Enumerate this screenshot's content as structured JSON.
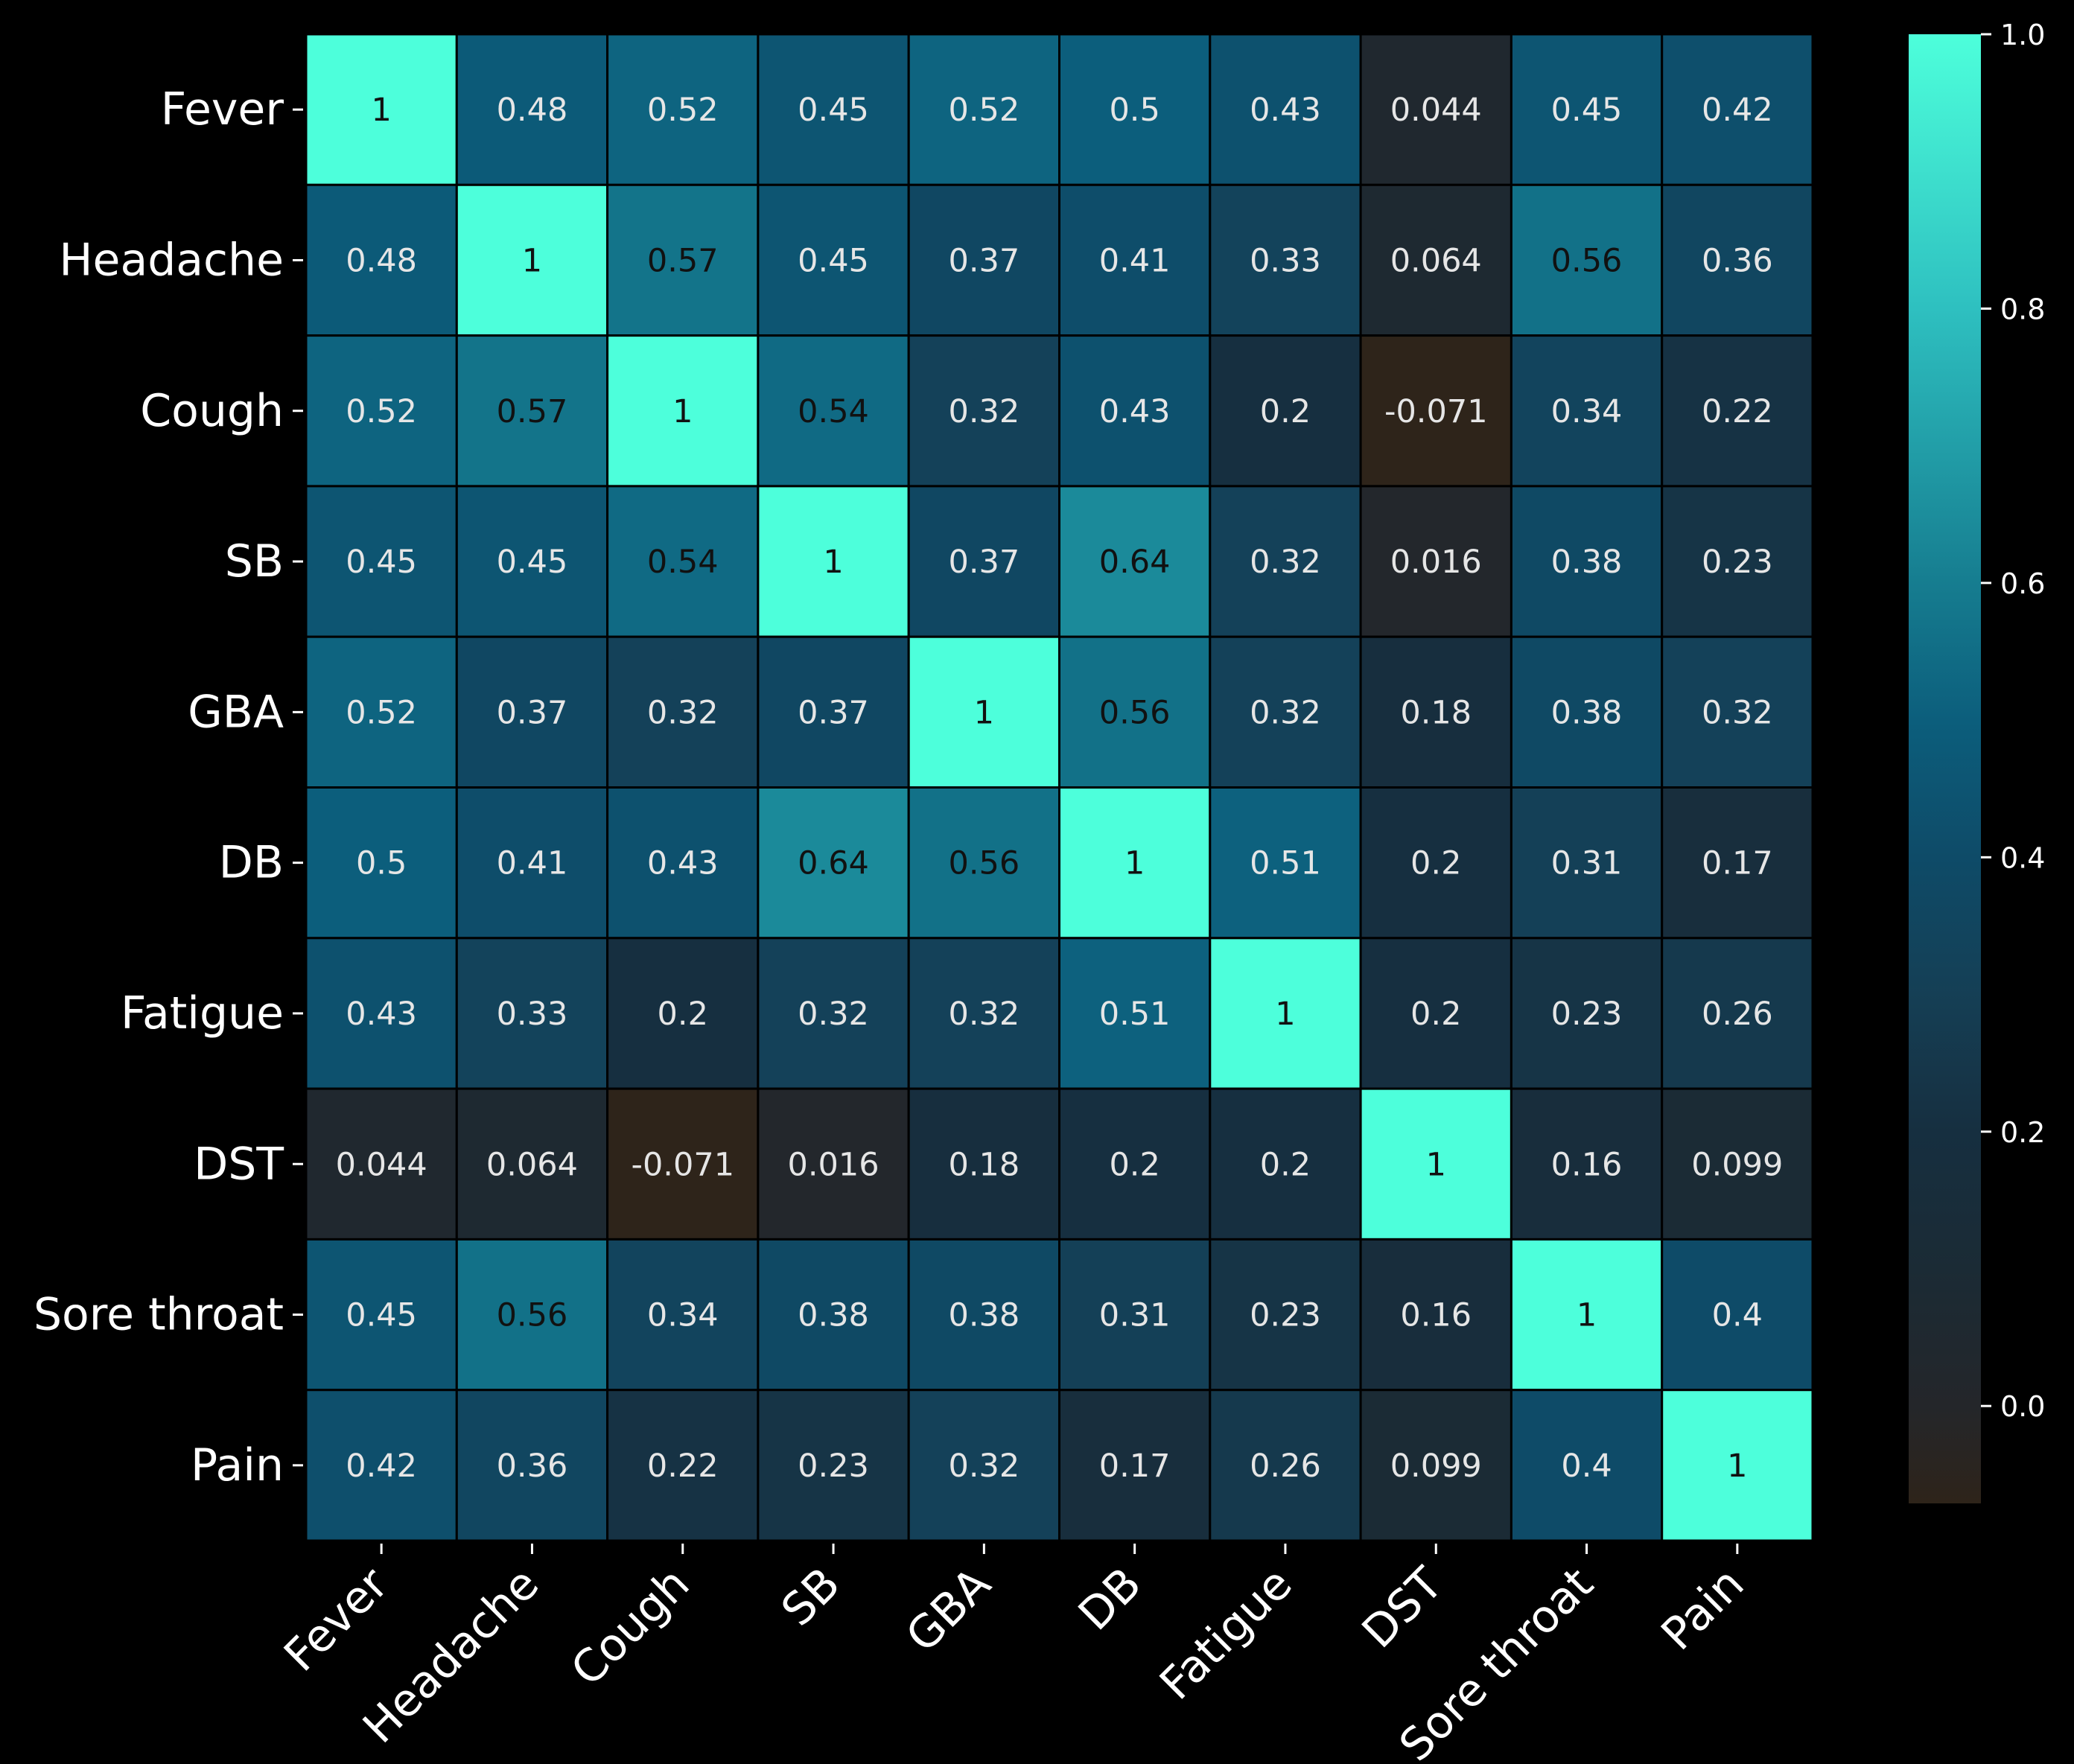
{
  "chart_data": {
    "type": "heatmap",
    "title": "",
    "xlabel": "",
    "ylabel": "",
    "row_labels": [
      "Fever",
      "Headache",
      "Cough",
      "SB",
      "GBA",
      "DB",
      "Fatigue",
      "DST",
      "Sore throat",
      "Pain"
    ],
    "col_labels": [
      "Fever",
      "Headache",
      "Cough",
      "SB",
      "GBA",
      "DB",
      "Fatigue",
      "DST",
      "Sore throat",
      "Pain"
    ],
    "values": [
      [
        1,
        0.48,
        0.52,
        0.45,
        0.52,
        0.5,
        0.43,
        0.044,
        0.45,
        0.42
      ],
      [
        0.48,
        1,
        0.57,
        0.45,
        0.37,
        0.41,
        0.33,
        0.064,
        0.56,
        0.36
      ],
      [
        0.52,
        0.57,
        1,
        0.54,
        0.32,
        0.43,
        0.2,
        -0.071,
        0.34,
        0.22
      ],
      [
        0.45,
        0.45,
        0.54,
        1,
        0.37,
        0.64,
        0.32,
        0.016,
        0.38,
        0.23
      ],
      [
        0.52,
        0.37,
        0.32,
        0.37,
        1,
        0.56,
        0.32,
        0.18,
        0.38,
        0.32
      ],
      [
        0.5,
        0.41,
        0.43,
        0.64,
        0.56,
        1,
        0.51,
        0.2,
        0.31,
        0.17
      ],
      [
        0.43,
        0.33,
        0.2,
        0.32,
        0.32,
        0.51,
        1,
        0.2,
        0.23,
        0.26
      ],
      [
        0.044,
        0.064,
        -0.071,
        0.016,
        0.18,
        0.2,
        0.2,
        1,
        0.16,
        0.099
      ],
      [
        0.45,
        0.56,
        0.34,
        0.38,
        0.38,
        0.31,
        0.23,
        0.16,
        1,
        0.4
      ],
      [
        0.42,
        0.36,
        0.22,
        0.23,
        0.32,
        0.17,
        0.26,
        0.099,
        0.4,
        1
      ]
    ],
    "colorbar": {
      "min": -0.071,
      "max": 1.0,
      "ticks": [
        0.0,
        0.2,
        0.4,
        0.6,
        0.8,
        1.0
      ],
      "tick_labels": [
        "0.0",
        "0.2",
        "0.4",
        "0.6",
        "0.8",
        "1.0"
      ]
    },
    "colormap": [
      {
        "v": -0.071,
        "color": "#2e241a"
      },
      {
        "v": 0.0,
        "color": "#24262a"
      },
      {
        "v": 0.1,
        "color": "#1b2b35"
      },
      {
        "v": 0.2,
        "color": "#162f40"
      },
      {
        "v": 0.3,
        "color": "#153f55"
      },
      {
        "v": 0.4,
        "color": "#0e4b68"
      },
      {
        "v": 0.5,
        "color": "#0c5e7c"
      },
      {
        "v": 0.6,
        "color": "#167d90"
      },
      {
        "v": 0.8,
        "color": "#2ec0c0"
      },
      {
        "v": 1.0,
        "color": "#4dffdb"
      }
    ],
    "grid": true,
    "legend": "right"
  }
}
